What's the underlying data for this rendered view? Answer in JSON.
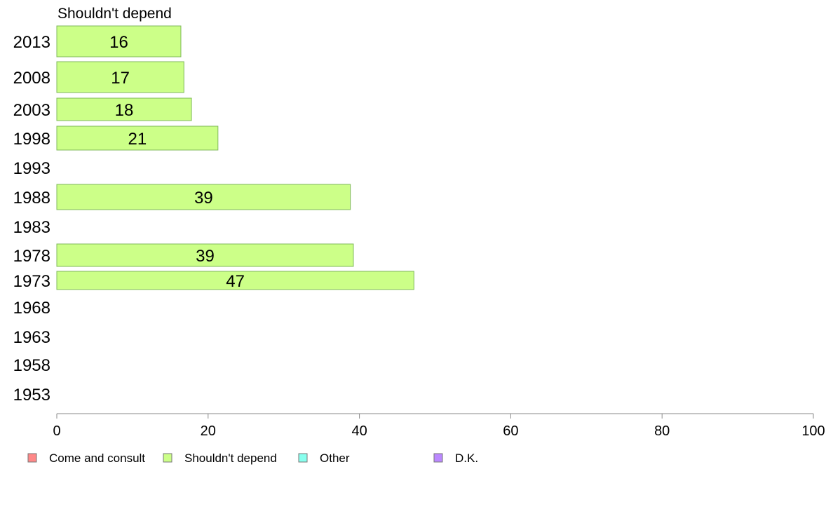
{
  "chart_data": {
    "type": "bar",
    "orientation": "horizontal",
    "title": "Shouldn't depend",
    "categories": [
      "2013",
      "2008",
      "2003",
      "1998",
      "1993",
      "1988",
      "1983",
      "1978",
      "1973",
      "1968",
      "1963",
      "1958",
      "1953"
    ],
    "series": [
      {
        "name": "Shouldn't depend",
        "color": "#ccff88",
        "values": [
          16.4,
          16.8,
          17.8,
          21.3,
          null,
          38.8,
          null,
          39.2,
          47.2,
          null,
          null,
          null,
          null
        ],
        "labels": [
          "16",
          "17",
          "18",
          "21",
          "",
          "39",
          "",
          "39",
          "47",
          "",
          "",
          "",
          ""
        ]
      }
    ],
    "xlim": [
      0,
      100
    ],
    "xticks": [
      "0",
      "20",
      "40",
      "60",
      "80",
      "100"
    ],
    "legend": {
      "placement": "bottom",
      "items": [
        {
          "label": "Come and consult",
          "color": "#ff8888"
        },
        {
          "label": "Shouldn't depend",
          "color": "#ccff88"
        },
        {
          "label": "Other",
          "color": "#88ffee"
        },
        {
          "label": "D.K.",
          "color": "#bb88ff"
        }
      ]
    }
  }
}
